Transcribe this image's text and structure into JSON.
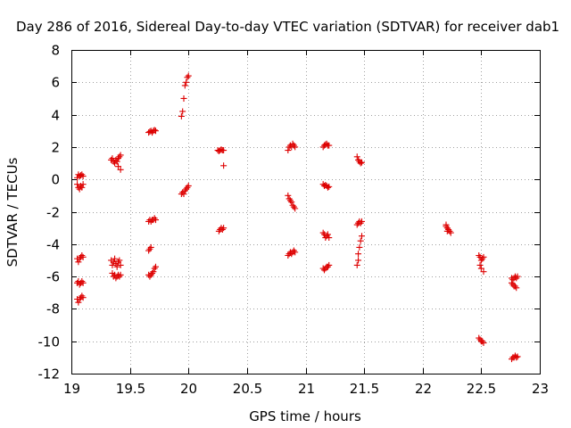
{
  "chart_data": {
    "type": "scatter",
    "title": "Day 286 of 2016, Sidereal Day-to-day VTEC variation (SDTVAR) for receiver dab1",
    "xlabel": "GPS time / hours",
    "ylabel": "SDTVAR / TECUs",
    "xlim": [
      19,
      23
    ],
    "ylim": [
      -12,
      8
    ],
    "xticks": [
      "19",
      "19.5",
      "20",
      "20.5",
      "21",
      "21.5",
      "22",
      "22.5",
      "23"
    ],
    "yticks": [
      "8",
      "6",
      "4",
      "2",
      "0",
      "-2",
      "-4",
      "-6",
      "-8",
      "-10",
      "-12"
    ],
    "grid": true,
    "marker": "plus",
    "color": "#dd0000",
    "series": [
      {
        "name": "SDTVAR",
        "points": [
          [
            19.05,
            0.1
          ],
          [
            19.06,
            0.3
          ],
          [
            19.07,
            0.2
          ],
          [
            19.08,
            0.25
          ],
          [
            19.09,
            0.3
          ],
          [
            19.1,
            0.2
          ],
          [
            19.05,
            -0.3
          ],
          [
            19.06,
            -0.5
          ],
          [
            19.07,
            -0.6
          ],
          [
            19.08,
            -0.4
          ],
          [
            19.09,
            -0.5
          ],
          [
            19.1,
            -0.3
          ],
          [
            19.05,
            -4.9
          ],
          [
            19.06,
            -5.1
          ],
          [
            19.07,
            -4.9
          ],
          [
            19.08,
            -4.8
          ],
          [
            19.09,
            -4.7
          ],
          [
            19.1,
            -4.8
          ],
          [
            19.05,
            -6.4
          ],
          [
            19.06,
            -6.3
          ],
          [
            19.07,
            -6.5
          ],
          [
            19.08,
            -6.4
          ],
          [
            19.09,
            -6.3
          ],
          [
            19.1,
            -6.4
          ],
          [
            19.05,
            -7.4
          ],
          [
            19.06,
            -7.6
          ],
          [
            19.07,
            -7.4
          ],
          [
            19.08,
            -7.3
          ],
          [
            19.09,
            -7.2
          ],
          [
            19.1,
            -7.3
          ],
          [
            19.34,
            1.2
          ],
          [
            19.35,
            1.3
          ],
          [
            19.36,
            1.1
          ],
          [
            19.37,
            1.0
          ],
          [
            19.38,
            1.2
          ],
          [
            19.39,
            1.1
          ],
          [
            19.4,
            1.3
          ],
          [
            19.41,
            1.4
          ],
          [
            19.42,
            1.5
          ],
          [
            19.4,
            0.8
          ],
          [
            19.42,
            0.6
          ],
          [
            19.34,
            -5.0
          ],
          [
            19.35,
            -5.3
          ],
          [
            19.36,
            -5.1
          ],
          [
            19.37,
            -4.9
          ],
          [
            19.38,
            -5.2
          ],
          [
            19.39,
            -5.4
          ],
          [
            19.4,
            -5.1
          ],
          [
            19.41,
            -5.0
          ],
          [
            19.42,
            -5.3
          ],
          [
            19.35,
            -5.8
          ],
          [
            19.36,
            -6.0
          ],
          [
            19.37,
            -5.9
          ],
          [
            19.38,
            -6.1
          ],
          [
            19.39,
            -6.0
          ],
          [
            19.4,
            -5.9
          ],
          [
            19.41,
            -6.0
          ],
          [
            19.42,
            -5.9
          ],
          [
            19.66,
            2.9
          ],
          [
            19.67,
            2.95
          ],
          [
            19.68,
            3.0
          ],
          [
            19.69,
            2.9
          ],
          [
            19.7,
            3.0
          ],
          [
            19.71,
            3.05
          ],
          [
            19.72,
            3.0
          ],
          [
            19.66,
            -2.6
          ],
          [
            19.67,
            -2.5
          ],
          [
            19.68,
            -2.6
          ],
          [
            19.69,
            -2.5
          ],
          [
            19.7,
            -2.5
          ],
          [
            19.71,
            -2.4
          ],
          [
            19.72,
            -2.5
          ],
          [
            19.66,
            -4.4
          ],
          [
            19.67,
            -4.3
          ],
          [
            19.68,
            -4.2
          ],
          [
            19.66,
            -5.9
          ],
          [
            19.67,
            -6.0
          ],
          [
            19.68,
            -5.9
          ],
          [
            19.69,
            -5.8
          ],
          [
            19.7,
            -5.7
          ],
          [
            19.71,
            -5.5
          ],
          [
            19.72,
            -5.4
          ],
          [
            19.94,
            3.9
          ],
          [
            19.95,
            4.2
          ],
          [
            19.96,
            5.0
          ],
          [
            19.97,
            5.8
          ],
          [
            19.98,
            6.0
          ],
          [
            19.99,
            6.3
          ],
          [
            20.0,
            6.4
          ],
          [
            19.94,
            -0.9
          ],
          [
            19.95,
            -0.8
          ],
          [
            19.96,
            -0.9
          ],
          [
            19.97,
            -0.7
          ],
          [
            19.98,
            -0.6
          ],
          [
            19.99,
            -0.5
          ],
          [
            20.0,
            -0.4
          ],
          [
            20.25,
            1.8
          ],
          [
            20.26,
            1.75
          ],
          [
            20.27,
            1.8
          ],
          [
            20.28,
            1.85
          ],
          [
            20.29,
            1.8
          ],
          [
            20.3,
            1.8
          ],
          [
            20.3,
            0.85
          ],
          [
            20.26,
            -3.2
          ],
          [
            20.27,
            -3.1
          ],
          [
            20.28,
            -3.0
          ],
          [
            20.29,
            -3.1
          ],
          [
            20.3,
            -3.0
          ],
          [
            20.85,
            1.8
          ],
          [
            20.86,
            2.0
          ],
          [
            20.87,
            2.1
          ],
          [
            20.88,
            2.0
          ],
          [
            20.89,
            2.2
          ],
          [
            20.9,
            2.1
          ],
          [
            20.91,
            2.0
          ],
          [
            20.85,
            -1.0
          ],
          [
            20.86,
            -1.2
          ],
          [
            20.87,
            -1.3
          ],
          [
            20.88,
            -1.4
          ],
          [
            20.89,
            -1.6
          ],
          [
            20.9,
            -1.7
          ],
          [
            20.91,
            -1.8
          ],
          [
            20.85,
            -4.7
          ],
          [
            20.86,
            -4.6
          ],
          [
            20.87,
            -4.5
          ],
          [
            20.88,
            -4.6
          ],
          [
            20.89,
            -4.5
          ],
          [
            20.9,
            -4.4
          ],
          [
            20.91,
            -4.5
          ],
          [
            21.15,
            2.0
          ],
          [
            21.16,
            2.1
          ],
          [
            21.17,
            2.15
          ],
          [
            21.18,
            2.2
          ],
          [
            21.19,
            2.1
          ],
          [
            21.2,
            2.1
          ],
          [
            21.15,
            -0.3
          ],
          [
            21.16,
            -0.4
          ],
          [
            21.17,
            -0.35
          ],
          [
            21.18,
            -0.4
          ],
          [
            21.19,
            -0.5
          ],
          [
            21.2,
            -0.45
          ],
          [
            21.15,
            -3.3
          ],
          [
            21.16,
            -3.4
          ],
          [
            21.17,
            -3.6
          ],
          [
            21.18,
            -3.5
          ],
          [
            21.19,
            -3.4
          ],
          [
            21.2,
            -3.6
          ],
          [
            21.15,
            -5.5
          ],
          [
            21.16,
            -5.6
          ],
          [
            21.17,
            -5.5
          ],
          [
            21.18,
            -5.4
          ],
          [
            21.19,
            -5.4
          ],
          [
            21.2,
            -5.3
          ],
          [
            21.44,
            1.4
          ],
          [
            21.45,
            1.2
          ],
          [
            21.46,
            1.1
          ],
          [
            21.47,
            1.0
          ],
          [
            21.48,
            1.05
          ],
          [
            21.44,
            -2.8
          ],
          [
            21.45,
            -2.7
          ],
          [
            21.46,
            -2.6
          ],
          [
            21.47,
            -2.7
          ],
          [
            21.48,
            -2.6
          ],
          [
            21.44,
            -5.3
          ],
          [
            21.45,
            -5.0
          ],
          [
            21.45,
            -4.6
          ],
          [
            21.46,
            -4.2
          ],
          [
            21.47,
            -3.8
          ],
          [
            21.48,
            -3.5
          ],
          [
            22.2,
            -2.9
          ],
          [
            22.21,
            -3.0
          ],
          [
            22.22,
            -3.1
          ],
          [
            22.23,
            -3.2
          ],
          [
            22.24,
            -3.3
          ],
          [
            22.2,
            -2.8
          ],
          [
            22.21,
            -3.2
          ],
          [
            22.48,
            -4.7
          ],
          [
            22.49,
            -4.8
          ],
          [
            22.5,
            -5.0
          ],
          [
            22.51,
            -4.9
          ],
          [
            22.52,
            -4.8
          ],
          [
            22.49,
            -5.3
          ],
          [
            22.5,
            -5.5
          ],
          [
            22.52,
            -5.7
          ],
          [
            22.48,
            -9.8
          ],
          [
            22.49,
            -9.9
          ],
          [
            22.5,
            -10.0
          ],
          [
            22.51,
            -10.0
          ],
          [
            22.52,
            -10.1
          ],
          [
            22.76,
            -6.1
          ],
          [
            22.77,
            -6.2
          ],
          [
            22.78,
            -6.1
          ],
          [
            22.79,
            -6.0
          ],
          [
            22.8,
            -6.1
          ],
          [
            22.81,
            -6.0
          ],
          [
            22.76,
            -6.4
          ],
          [
            22.77,
            -6.5
          ],
          [
            22.78,
            -6.6
          ],
          [
            22.79,
            -6.6
          ],
          [
            22.8,
            -6.7
          ],
          [
            22.76,
            -11.1
          ],
          [
            22.77,
            -11.0
          ],
          [
            22.78,
            -11.0
          ],
          [
            22.79,
            -10.9
          ],
          [
            22.8,
            -11.0
          ],
          [
            22.81,
            -10.95
          ]
        ]
      }
    ]
  }
}
